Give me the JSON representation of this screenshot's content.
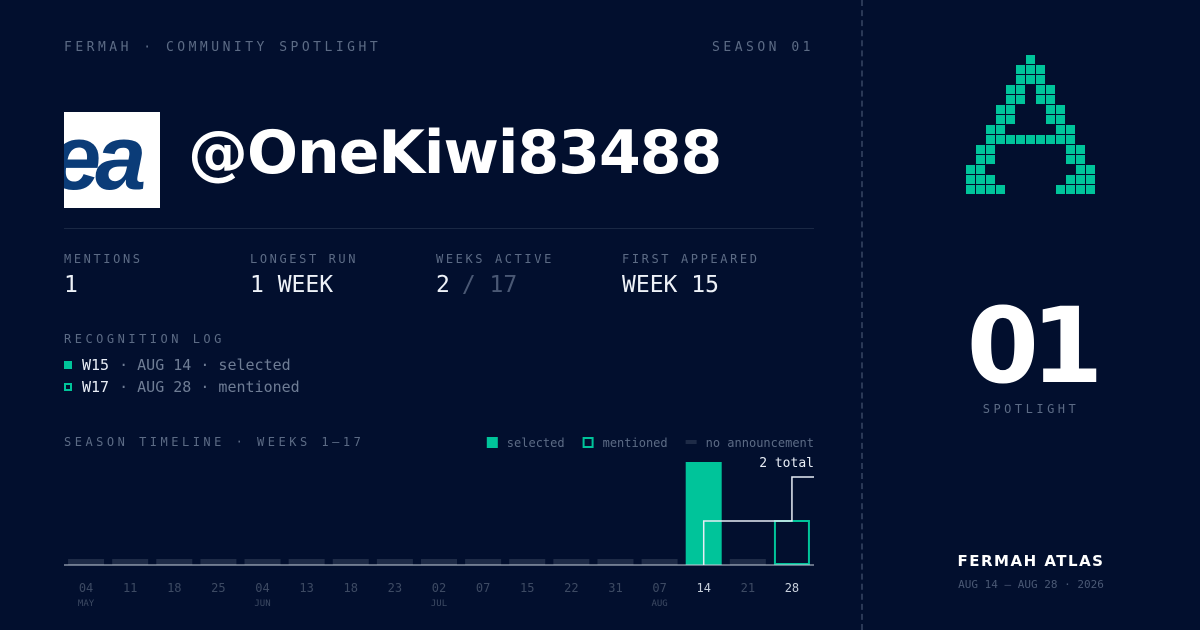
{
  "header": {
    "brand": "FERMAH · COMMUNITY SPOTLIGHT",
    "season": "SEASON 01"
  },
  "profile": {
    "avatar_text": "ea",
    "handle": "@OneKiwi83488"
  },
  "stats": [
    {
      "label": "MENTIONS",
      "value": "1"
    },
    {
      "label": "LONGEST RUN",
      "value": "1 WEEK"
    },
    {
      "label": "WEEKS ACTIVE",
      "value": "2",
      "suffix": "/ 17"
    },
    {
      "label": "FIRST APPEARED",
      "value": "WEEK 15"
    }
  ],
  "log": {
    "title": "RECOGNITION LOG",
    "entries": [
      {
        "week": "W15",
        "detail": "· AUG 14 · selected",
        "status": "selected"
      },
      {
        "week": "W17",
        "detail": "· AUG 28 · mentioned",
        "status": "mentioned"
      }
    ]
  },
  "timeline": {
    "title": "SEASON TIMELINE · WEEKS 1–17",
    "legend": [
      {
        "name": "selected",
        "color": "#00c49a"
      },
      {
        "name": "mentioned",
        "color": "#00c49a"
      },
      {
        "name": "no announcement",
        "color": "#1e2b47"
      }
    ],
    "total_label": "2 total",
    "weeks": [
      {
        "day": "04",
        "month": "MAY",
        "status": "no announcement"
      },
      {
        "day": "11",
        "status": "no announcement"
      },
      {
        "day": "18",
        "status": "no announcement"
      },
      {
        "day": "25",
        "status": "no announcement"
      },
      {
        "day": "04",
        "month": "JUN",
        "status": "no announcement"
      },
      {
        "day": "13",
        "status": "no announcement"
      },
      {
        "day": "18",
        "status": "no announcement"
      },
      {
        "day": "23",
        "status": "no announcement"
      },
      {
        "day": "02",
        "month": "JUL",
        "status": "no announcement"
      },
      {
        "day": "07",
        "status": "no announcement"
      },
      {
        "day": "15",
        "status": "no announcement"
      },
      {
        "day": "22",
        "status": "no announcement"
      },
      {
        "day": "31",
        "status": "no announcement"
      },
      {
        "day": "07",
        "month": "AUG",
        "status": "no announcement"
      },
      {
        "day": "14",
        "status": "selected"
      },
      {
        "day": "21",
        "status": "no announcement"
      },
      {
        "day": "28",
        "status": "mentioned"
      }
    ]
  },
  "side": {
    "number": "01",
    "label": "SPOTLIGHT",
    "title": "FERMAH ATLAS",
    "dates": "AUG 14 — AUG 28 · 2026"
  }
}
